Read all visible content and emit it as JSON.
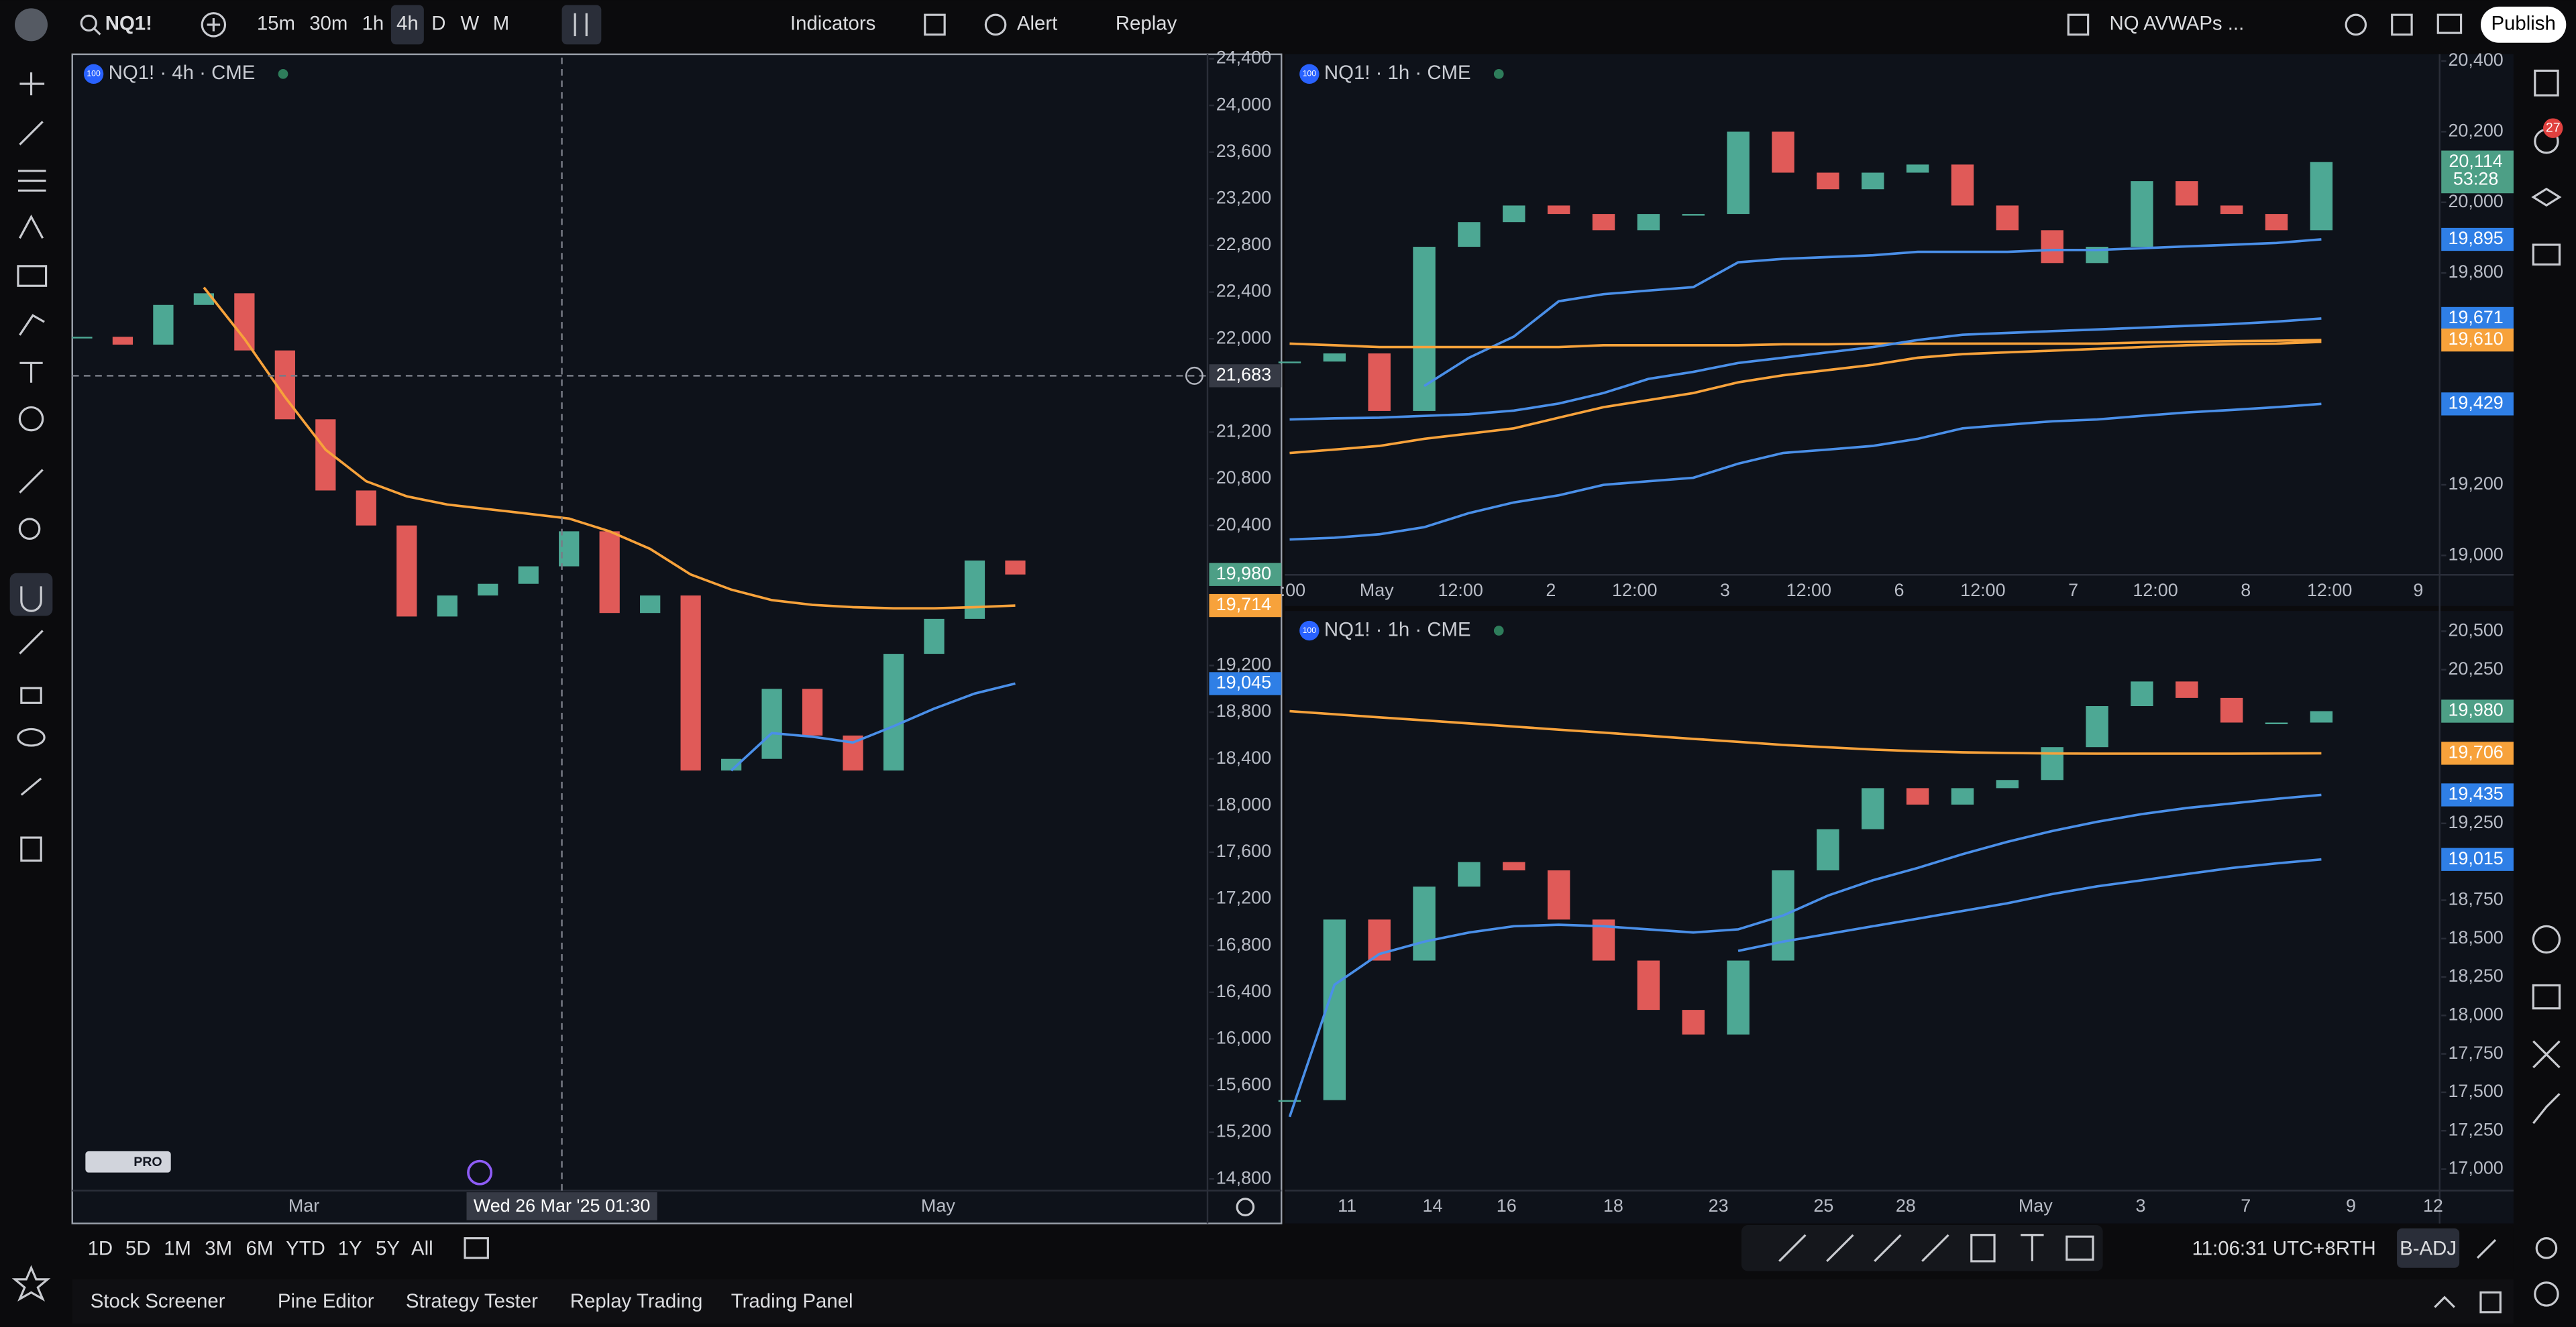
{
  "toolbar": {
    "symbol": "NQ1!",
    "intervals": [
      "15m",
      "30m",
      "1h",
      "4h",
      "D",
      "W",
      "M"
    ],
    "indicators": "Indicators",
    "alert": "Alert",
    "replay": "Replay",
    "layout_name": "NQ AVWAPs ...",
    "publish": "Publish"
  },
  "notifications": "27",
  "symbol_badge": "100",
  "charts": [
    {
      "type": "candlestick",
      "title": "NQ1! · 4h · CME",
      "up_color": "#4da894",
      "down_color": "#e05a58",
      "close": [
        22017,
        21950,
        22290,
        22390,
        21900,
        21310,
        20700,
        20400,
        19620,
        19800,
        19900,
        20050,
        20350,
        19650,
        19800,
        18300,
        18400,
        19000,
        18600,
        18300,
        19300,
        19600,
        20100,
        19980
      ],
      "series": [
        {
          "color": "#f7a23b",
          "values": [
            null,
            null,
            null,
            22440,
            22000,
            21500,
            21050,
            20780,
            20650,
            20580,
            20540,
            20500,
            20460,
            20350,
            20200,
            19980,
            19850,
            19760,
            19720,
            19700,
            19690,
            19690,
            19700,
            19714
          ]
        },
        {
          "color": "#4a8fe8",
          "values": [
            null,
            null,
            null,
            null,
            null,
            null,
            null,
            null,
            null,
            null,
            null,
            null,
            null,
            null,
            null,
            null,
            18300,
            18620,
            18590,
            18540,
            18680,
            18830,
            18960,
            19045
          ]
        }
      ],
      "ylim": [
        14700,
        24410
      ],
      "yticks": [
        {
          "value": 24400,
          "label": "24,400"
        },
        {
          "value": 24000,
          "label": "24,000"
        },
        {
          "value": 23600,
          "label": "23,600"
        },
        {
          "value": 23200,
          "label": "23,200"
        },
        {
          "value": 22800,
          "label": "22,800"
        },
        {
          "value": 22400,
          "label": "22,400"
        },
        {
          "value": 22000,
          "label": "22,000"
        },
        {
          "value": 21200,
          "label": "21,200"
        },
        {
          "value": 20800,
          "label": "20,800"
        },
        {
          "value": 20400,
          "label": "20,400"
        },
        {
          "value": 19200,
          "label": "19,200"
        },
        {
          "value": 18800,
          "label": "18,800"
        },
        {
          "value": 18400,
          "label": "18,400"
        },
        {
          "value": 18000,
          "label": "18,000"
        },
        {
          "value": 17600,
          "label": "17,600"
        },
        {
          "value": 17200,
          "label": "17,200"
        },
        {
          "value": 16800,
          "label": "16,800"
        },
        {
          "value": 16400,
          "label": "16,400"
        },
        {
          "value": 16000,
          "label": "16,000"
        },
        {
          "value": 15600,
          "label": "15,600"
        },
        {
          "value": 15200,
          "label": "15,200"
        },
        {
          "value": 14800,
          "label": "14,800"
        }
      ],
      "x_labels": [
        "Mar",
        "May"
      ],
      "price_tags": [
        {
          "value": 19980,
          "label": "19,980",
          "color": "#4d9f86"
        },
        {
          "value": 19714,
          "label": "19,714",
          "color": "#f7a23b"
        },
        {
          "value": 19045,
          "label": "19,045",
          "color": "#2f7fe6"
        }
      ],
      "crosshair": {
        "price": {
          "value": 21683,
          "label": "21,683"
        },
        "time": "Wed 26 Mar '25   01:30"
      },
      "logo": "PRO"
    },
    {
      "type": "candlestick",
      "title": "NQ1! · 1h · CME",
      "up_color": "#4da894",
      "down_color": "#e05a58",
      "close": [
        19549,
        19572,
        19409,
        19874,
        19944,
        19991,
        19967,
        19921,
        19967,
        19967,
        20200,
        20084,
        20037,
        20084,
        20107,
        19991,
        19921,
        19828,
        19874,
        20060,
        19991,
        19967,
        19921,
        20114
      ],
      "series": [
        {
          "color": "#4a8fe8",
          "values": [
            null,
            null,
            null,
            19480,
            19560,
            19620,
            19720,
            19740,
            19750,
            19760,
            19830,
            19840,
            19845,
            19850,
            19860,
            19860,
            19860,
            19865,
            19865,
            19870,
            19875,
            19880,
            19885,
            19895
          ]
        },
        {
          "color": "#f7a23b",
          "values": [
            19600,
            19595,
            19590,
            19590,
            19590,
            19590,
            19590,
            19595,
            19595,
            19595,
            19595,
            19598,
            19598,
            19600,
            19600,
            19600,
            19600,
            19600,
            19600,
            19603,
            19605,
            19607,
            19608,
            19610
          ]
        },
        {
          "color": "#4a8fe8",
          "values": [
            19385,
            19388,
            19390,
            19395,
            19400,
            19410,
            19430,
            19460,
            19500,
            19520,
            19545,
            19560,
            19575,
            19590,
            19610,
            19625,
            19630,
            19635,
            19640,
            19645,
            19650,
            19655,
            19662,
            19671
          ]
        },
        {
          "color": "#f7a23b",
          "values": [
            19290,
            19300,
            19310,
            19330,
            19345,
            19360,
            19390,
            19420,
            19440,
            19460,
            19490,
            19510,
            19525,
            19540,
            19560,
            19570,
            19575,
            19580,
            19585,
            19590,
            19595,
            19598,
            19600,
            19605
          ]
        },
        {
          "color": "#4a8fe8",
          "values": [
            19045,
            19050,
            19060,
            19080,
            19120,
            19150,
            19170,
            19200,
            19210,
            19220,
            19260,
            19290,
            19300,
            19310,
            19330,
            19360,
            19370,
            19380,
            19385,
            19395,
            19405,
            19412,
            19420,
            19429
          ]
        }
      ],
      "ylim": [
        18945,
        20410
      ],
      "yticks": [
        {
          "value": 20400,
          "label": "20,400"
        },
        {
          "value": 20200,
          "label": "20,200"
        },
        {
          "value": 20000,
          "label": "20,000"
        },
        {
          "value": 19800,
          "label": "19,800"
        },
        {
          "value": 19200,
          "label": "19,200"
        },
        {
          "value": 19000,
          "label": "19,000"
        }
      ],
      "x_labels": [
        ":00",
        "May",
        "12:00",
        "2",
        "12:00",
        "3",
        "12:00",
        "6",
        "12:00",
        "7",
        "12:00",
        "8",
        "12:00",
        "9"
      ],
      "price_tags": [
        {
          "value": 20114,
          "label": "20,114",
          "color": "#4d9f86",
          "countdown": "53:28"
        },
        {
          "value": 19895,
          "label": "19,895",
          "color": "#2f7fe6"
        },
        {
          "value": 19671,
          "label": "19,671",
          "color": "#2f7fe6"
        },
        {
          "value": 19610,
          "label": "19,610",
          "color": "#f7a23b"
        },
        {
          "value": 19429,
          "label": "19,429",
          "color": "#2f7fe6"
        }
      ]
    },
    {
      "type": "candlestick",
      "title": "NQ1! · 1h · CME",
      "up_color": "#4da894",
      "down_color": "#e05a58",
      "close": [
        17449,
        18624,
        18357,
        18838,
        18998,
        18944,
        18624,
        18357,
        18036,
        17876,
        18357,
        18944,
        19212,
        19479,
        19372,
        19479,
        19532,
        19746,
        20013,
        20173,
        20066,
        19906,
        19906,
        19980
      ],
      "series": [
        {
          "color": "#f7a23b",
          "values": [
            19980,
            19960,
            19940,
            19920,
            19900,
            19880,
            19860,
            19840,
            19820,
            19800,
            19780,
            19760,
            19745,
            19730,
            19720,
            19712,
            19708,
            19705,
            19704,
            19703,
            19703,
            19704,
            19705,
            19706
          ]
        },
        {
          "color": "#4a8fe8",
          "values": [
            17340,
            18200,
            18400,
            18480,
            18540,
            18580,
            18590,
            18580,
            18560,
            18540,
            18560,
            18650,
            18780,
            18880,
            18960,
            19050,
            19130,
            19200,
            19260,
            19310,
            19350,
            19380,
            19410,
            19435
          ]
        },
        {
          "color": "#4a8fe8",
          "values": [
            null,
            null,
            null,
            null,
            null,
            null,
            null,
            null,
            null,
            null,
            18420,
            18480,
            18530,
            18580,
            18630,
            18680,
            18730,
            18790,
            18840,
            18880,
            18920,
            18960,
            18990,
            19015
          ]
        }
      ],
      "ylim": [
        16860,
        20600
      ],
      "yticks": [
        {
          "value": 20500,
          "label": "20,500"
        },
        {
          "value": 20250,
          "label": "20,250"
        },
        {
          "value": 19250,
          "label": "19,250"
        },
        {
          "value": 18750,
          "label": "18,750"
        },
        {
          "value": 18500,
          "label": "18,500"
        },
        {
          "value": 18250,
          "label": "18,250"
        },
        {
          "value": 18000,
          "label": "18,000"
        },
        {
          "value": 17750,
          "label": "17,750"
        },
        {
          "value": 17500,
          "label": "17,500"
        },
        {
          "value": 17250,
          "label": "17,250"
        },
        {
          "value": 17000,
          "label": "17,000"
        }
      ],
      "x_labels": [
        "11",
        "14",
        "16",
        "18",
        "23",
        "25",
        "28",
        "May",
        "3",
        "7",
        "9",
        "12"
      ],
      "price_tags": [
        {
          "value": 19980,
          "label": "19,980",
          "color": "#4d9f86"
        },
        {
          "value": 19706,
          "label": "19,706",
          "color": "#f7a23b"
        },
        {
          "value": 19435,
          "label": "19,435",
          "color": "#2f7fe6"
        },
        {
          "value": 19015,
          "label": "19,015",
          "color": "#2f7fe6"
        }
      ]
    }
  ],
  "range_buttons": [
    "1D",
    "5D",
    "1M",
    "3M",
    "6M",
    "YTD",
    "1Y",
    "5Y",
    "All"
  ],
  "clock": "11:06:31 UTC+8",
  "session": "RTH",
  "adjust": "B-ADJ",
  "tabs": [
    "Stock Screener",
    "Pine Editor",
    "Strategy Tester",
    "Replay Trading",
    "Trading Panel"
  ]
}
